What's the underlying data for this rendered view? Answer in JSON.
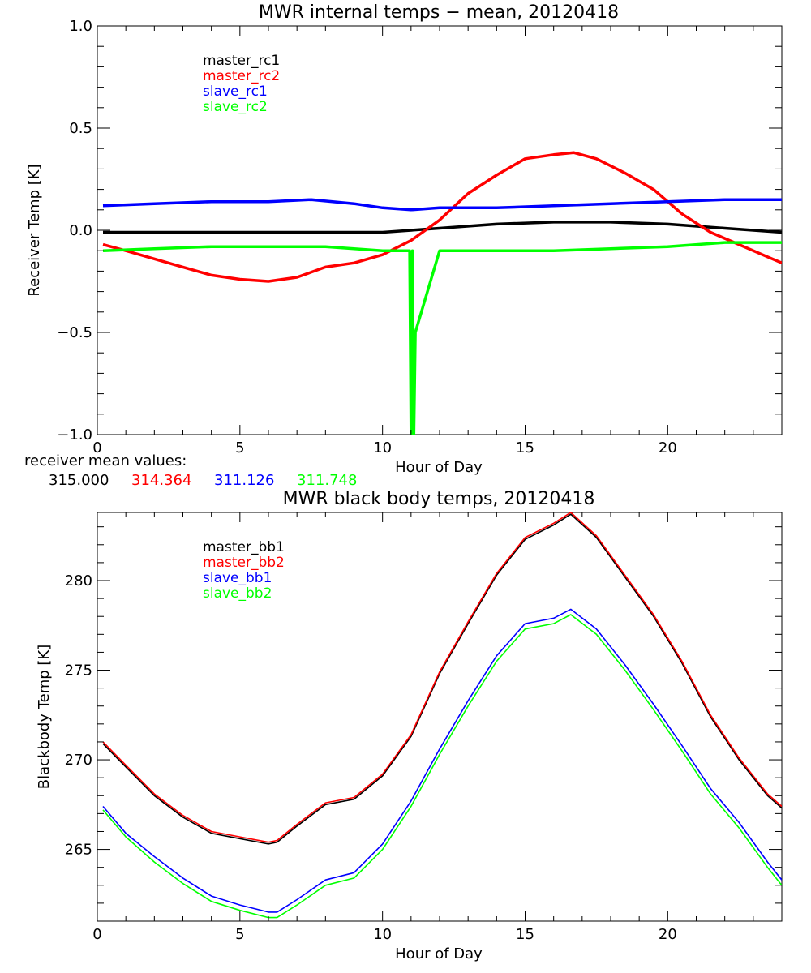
{
  "chart_data": [
    {
      "type": "line",
      "title": "MWR internal temps − mean, 20120418",
      "xlabel": "Hour of Day",
      "ylabel": "Receiver Temp [K]",
      "xlim": [
        0,
        24
      ],
      "ylim": [
        -1.0,
        1.0
      ],
      "x_ticks": [
        0,
        5,
        10,
        15,
        20
      ],
      "y_ticks": [
        -1.0,
        -0.5,
        0.0,
        0.5,
        1.0
      ],
      "y_tick_labels": [
        "−1.0",
        "−0.5",
        "0.0",
        "0.5",
        "1.0"
      ],
      "legend_position": "top-left",
      "grid": false,
      "mean_values_label": "receiver mean values:",
      "mean_values": [
        {
          "text": "315.000",
          "color": "#000000"
        },
        {
          "text": "314.364",
          "color": "#ff0000"
        },
        {
          "text": "311.126",
          "color": "#0000ff"
        },
        {
          "text": "311.748",
          "color": "#00ff00"
        }
      ],
      "series": [
        {
          "name": "master_rc1",
          "color": "#000000",
          "x": [
            0.2,
            2,
            4,
            6,
            8,
            10,
            12,
            14,
            16,
            18,
            20,
            22,
            24
          ],
          "y": [
            -0.01,
            -0.01,
            -0.01,
            -0.01,
            -0.01,
            -0.01,
            0.01,
            0.03,
            0.04,
            0.04,
            0.03,
            0.01,
            -0.01
          ]
        },
        {
          "name": "master_rc2",
          "color": "#ff0000",
          "x": [
            0.2,
            1,
            2,
            3,
            4,
            5,
            6,
            7,
            8,
            9,
            10,
            11,
            12,
            13,
            14,
            15,
            16,
            16.7,
            17.5,
            18.5,
            19.5,
            20.5,
            21.5,
            22.5,
            23.5,
            24
          ],
          "y": [
            -0.07,
            -0.1,
            -0.14,
            -0.18,
            -0.22,
            -0.24,
            -0.25,
            -0.23,
            -0.18,
            -0.16,
            -0.12,
            -0.05,
            0.05,
            0.18,
            0.27,
            0.35,
            0.37,
            0.38,
            0.35,
            0.28,
            0.2,
            0.08,
            -0.01,
            -0.07,
            -0.13,
            -0.16
          ]
        },
        {
          "name": "slave_rc1",
          "color": "#0000ff",
          "x": [
            0.2,
            2,
            4,
            6,
            7.5,
            9,
            10,
            11,
            12,
            14,
            16,
            18,
            20,
            22,
            24
          ],
          "y": [
            0.12,
            0.13,
            0.14,
            0.14,
            0.15,
            0.13,
            0.11,
            0.1,
            0.11,
            0.11,
            0.12,
            0.13,
            0.14,
            0.15,
            0.15
          ]
        },
        {
          "name": "slave_rc2",
          "color": "#00ff00",
          "x": [
            0.2,
            2,
            4,
            6,
            8,
            10,
            10.95,
            11.0,
            11.05,
            11.1,
            11.15,
            12,
            14,
            16,
            18,
            20,
            22,
            24
          ],
          "y": [
            -0.1,
            -0.09,
            -0.08,
            -0.08,
            -0.08,
            -0.1,
            -0.1,
            -1.0,
            -0.1,
            -1.0,
            -0.5,
            -0.1,
            -0.1,
            -0.1,
            -0.09,
            -0.08,
            -0.06,
            -0.06
          ]
        }
      ]
    },
    {
      "type": "line",
      "title": "MWR black body temps, 20120418",
      "xlabel": "Hour of Day",
      "ylabel": "Blackbody Temp [K]",
      "xlim": [
        0,
        24
      ],
      "ylim": [
        261,
        283.8
      ],
      "x_ticks": [
        0,
        5,
        10,
        15,
        20
      ],
      "y_ticks": [
        265,
        270,
        275,
        280
      ],
      "y_tick_labels": [
        "265",
        "270",
        "275",
        "280"
      ],
      "legend_position": "top-left",
      "grid": false,
      "series": [
        {
          "name": "master_bb1",
          "color": "#000000",
          "x": [
            0.2,
            1,
            2,
            3,
            4,
            5,
            6,
            6.3,
            7,
            8,
            9,
            10,
            11,
            12,
            13,
            14,
            15,
            16,
            16.6,
            17.5,
            18.5,
            19.5,
            20.5,
            21.5,
            22.5,
            23.5,
            24
          ],
          "y": [
            270.9,
            269.6,
            268.0,
            266.8,
            265.9,
            265.6,
            265.3,
            265.4,
            266.3,
            267.5,
            267.8,
            269.1,
            271.3,
            274.8,
            277.6,
            280.3,
            282.3,
            283.1,
            283.7,
            282.4,
            280.2,
            278.0,
            275.4,
            272.4,
            270.0,
            268.0,
            267.3
          ]
        },
        {
          "name": "master_bb2",
          "color": "#ff0000",
          "x": [
            0.2,
            1,
            2,
            3,
            4,
            5,
            6,
            6.3,
            7,
            8,
            9,
            10,
            11,
            12,
            13,
            14,
            15,
            16,
            16.6,
            17.5,
            18.5,
            19.5,
            20.5,
            21.5,
            22.5,
            23.5,
            24
          ],
          "y": [
            271.0,
            269.7,
            268.1,
            266.9,
            266.0,
            265.7,
            265.4,
            265.5,
            266.4,
            267.6,
            267.9,
            269.2,
            271.4,
            274.9,
            277.7,
            280.4,
            282.4,
            283.2,
            283.8,
            282.5,
            280.3,
            278.1,
            275.5,
            272.5,
            270.1,
            268.1,
            267.4
          ]
        },
        {
          "name": "slave_bb1",
          "color": "#0000ff",
          "x": [
            0.2,
            1,
            2,
            3,
            4,
            5,
            6,
            6.3,
            7,
            8,
            9,
            10,
            11,
            12,
            13,
            14,
            15,
            16,
            16.6,
            17.5,
            18.5,
            19.5,
            20.5,
            21.5,
            22.5,
            23.5,
            24
          ],
          "y": [
            267.4,
            265.9,
            264.6,
            263.4,
            262.4,
            261.9,
            261.5,
            261.5,
            262.2,
            263.3,
            263.7,
            265.3,
            267.7,
            270.6,
            273.3,
            275.8,
            277.6,
            277.9,
            278.4,
            277.3,
            275.3,
            273.1,
            270.8,
            268.4,
            266.5,
            264.3,
            263.3
          ]
        },
        {
          "name": "slave_bb2",
          "color": "#00ff00",
          "x": [
            0.2,
            1,
            2,
            3,
            4,
            5,
            6,
            6.3,
            7,
            8,
            9,
            10,
            11,
            12,
            13,
            14,
            15,
            16,
            16.6,
            17.5,
            18.5,
            19.5,
            20.5,
            21.5,
            22.5,
            23.5,
            24
          ],
          "y": [
            267.2,
            265.7,
            264.3,
            263.1,
            262.1,
            261.6,
            261.2,
            261.2,
            261.9,
            263.0,
            263.4,
            265.0,
            267.4,
            270.3,
            273.0,
            275.5,
            277.3,
            277.6,
            278.1,
            277.0,
            275.0,
            272.8,
            270.5,
            268.1,
            266.2,
            264.0,
            263.0
          ]
        }
      ]
    }
  ]
}
